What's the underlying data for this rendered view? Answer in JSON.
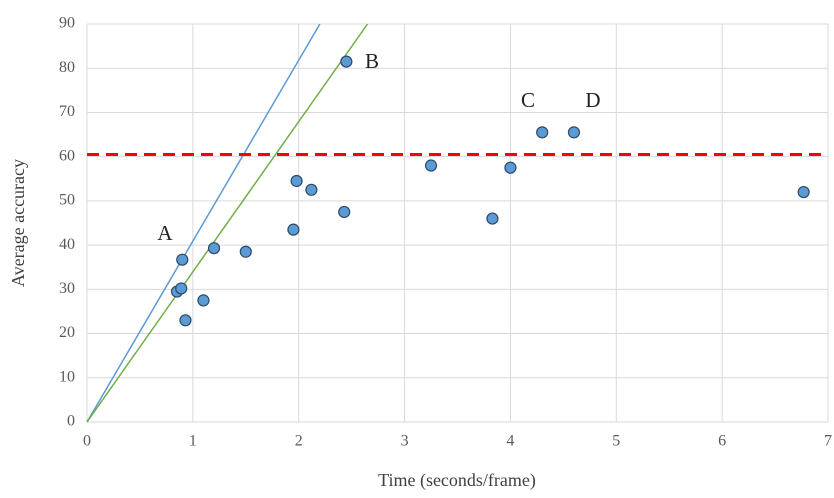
{
  "chart_data": {
    "type": "scatter",
    "xlabel": "Time (seconds/frame)",
    "ylabel": "Average accuracy",
    "xlim": [
      0,
      7
    ],
    "ylim": [
      0,
      90
    ],
    "xticks": [
      0,
      1,
      2,
      3,
      4,
      5,
      6,
      7
    ],
    "yticks": [
      0,
      10,
      20,
      30,
      40,
      50,
      60,
      70,
      80,
      90
    ],
    "grid": true,
    "series": [
      {
        "color": "#5b9bd5",
        "x": [
          0.9,
          0.85,
          0.89,
          0.93,
          1.1,
          1.2,
          1.5,
          1.95,
          1.98,
          2.12,
          2.43,
          2.45,
          3.25,
          3.83,
          4.0,
          4.3,
          4.6,
          6.77
        ],
        "values": [
          36.7,
          29.5,
          30.2,
          23,
          27.5,
          39.3,
          38.5,
          43.5,
          54.5,
          52.5,
          47.5,
          81.5,
          58,
          46,
          57.5,
          65.5,
          65.5,
          52
        ]
      }
    ],
    "reference_lines": [
      {
        "color": "#5b9bd5",
        "x": [
          0,
          2.2
        ],
        "values": [
          0,
          90
        ]
      },
      {
        "color": "#70ad47",
        "x": [
          0,
          2.65
        ],
        "values": [
          0,
          90
        ]
      },
      {
        "color": "#ff0000",
        "x": [
          0,
          7
        ],
        "values": [
          60.5,
          60.5
        ],
        "dashed": true
      }
    ],
    "annotations": [
      "A",
      "B",
      "C",
      "D"
    ]
  }
}
